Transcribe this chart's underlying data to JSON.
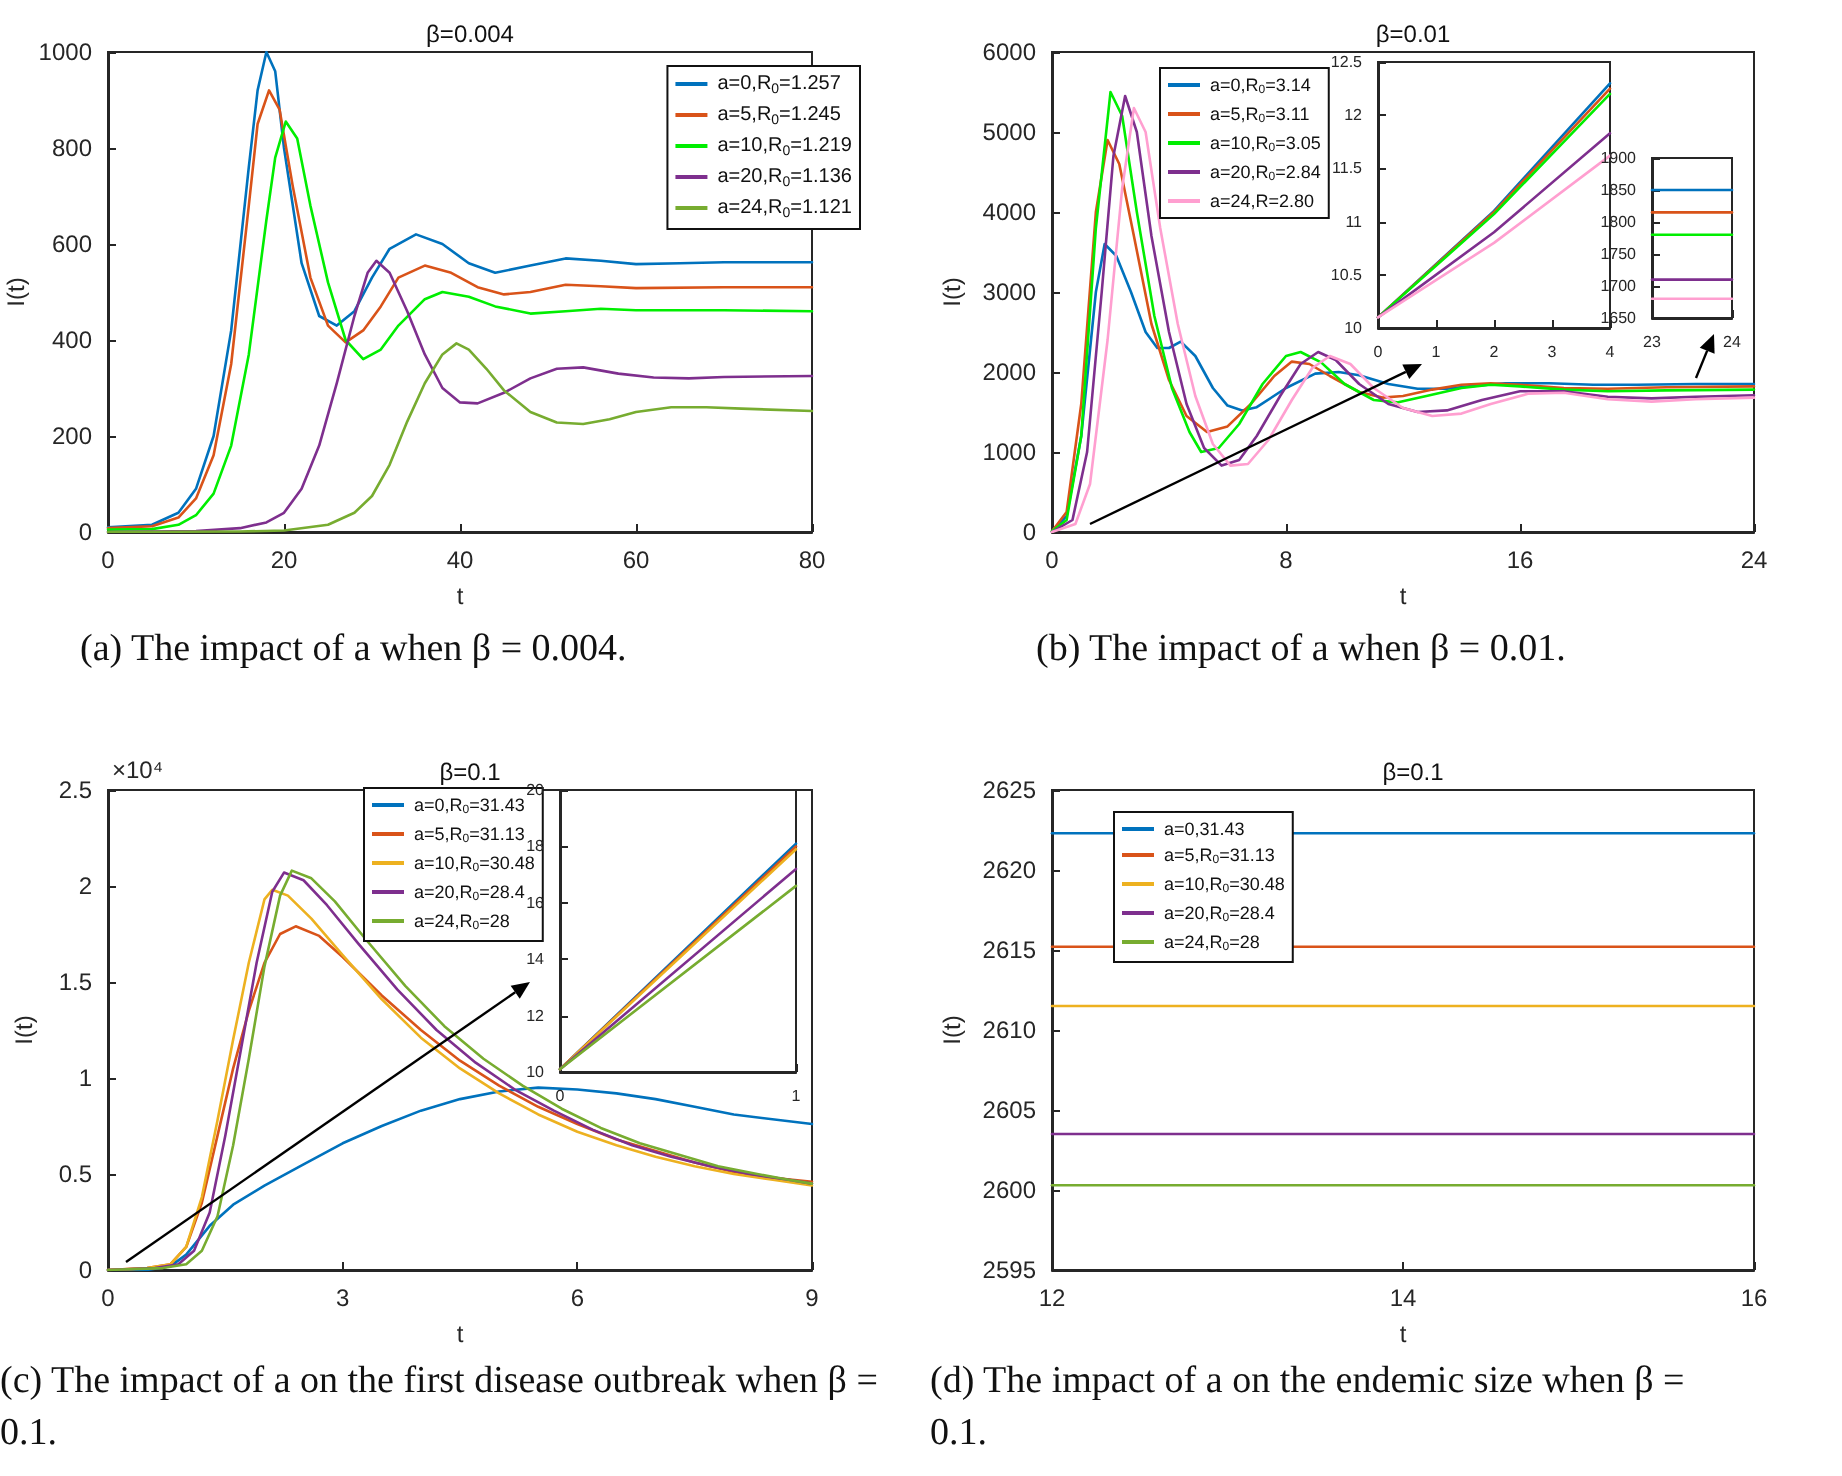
{
  "chart_data": [
    {
      "type": "line",
      "title": "β=0.004",
      "xlabel": "t",
      "ylabel": "I(t)",
      "xlim": [
        0,
        80
      ],
      "xticks": [
        0,
        20,
        40,
        60,
        80
      ],
      "ylim": [
        0,
        1000
      ],
      "yticks": [
        0,
        200,
        400,
        600,
        800,
        1000
      ],
      "legend": "top right",
      "annotations": [
        "(a) The impact of a when β = 0.004."
      ],
      "series": [
        {
          "name": "a=0,R$_{0}$=1.257",
          "color": "#0072bd",
          "x": [
            0,
            5,
            8,
            10,
            12,
            14,
            16,
            17,
            18,
            19,
            20,
            22,
            24,
            26,
            28,
            30,
            32,
            35,
            38,
            41,
            44,
            48,
            52,
            56,
            60,
            65,
            70,
            80
          ],
          "values": [
            10,
            15,
            40,
            90,
            200,
            420,
            760,
            920,
            1000,
            960,
            800,
            560,
            450,
            430,
            460,
            530,
            590,
            620,
            600,
            560,
            540,
            555,
            570,
            565,
            558,
            560,
            562,
            562
          ]
        },
        {
          "name": "a=5,R$_{0}$=1.245",
          "color": "#d95319",
          "x": [
            0,
            5,
            8,
            10,
            12,
            14,
            16,
            17,
            18.3,
            19.5,
            21,
            23,
            25,
            27,
            29,
            31,
            33,
            36,
            39,
            42,
            45,
            48,
            52,
            56,
            60,
            70,
            80
          ],
          "values": [
            8,
            12,
            30,
            70,
            160,
            350,
            680,
            850,
            920,
            880,
            720,
            530,
            430,
            395,
            420,
            470,
            530,
            555,
            540,
            510,
            495,
            500,
            515,
            512,
            508,
            510,
            510
          ]
        },
        {
          "name": "a=10,R$_{0}$=1.219",
          "color": "#00ee00",
          "x": [
            0,
            5,
            8,
            10,
            12,
            14,
            16,
            18,
            19,
            20.2,
            21.5,
            23,
            25,
            27,
            29,
            31,
            33,
            36,
            38,
            41,
            44,
            48,
            52,
            56,
            60,
            70,
            80
          ],
          "values": [
            5,
            6,
            15,
            35,
            80,
            180,
            370,
            650,
            780,
            855,
            820,
            680,
            520,
            400,
            360,
            380,
            430,
            485,
            500,
            490,
            470,
            455,
            460,
            465,
            462,
            462,
            460
          ]
        },
        {
          "name": "a=20,R$_{0}$=1.136",
          "color": "#7e2f8e",
          "x": [
            0,
            10,
            15,
            18,
            20,
            22,
            24,
            26,
            28,
            29.5,
            30.5,
            32,
            34,
            36,
            38,
            40,
            42,
            45,
            48,
            51,
            54,
            58,
            62,
            66,
            70,
            80
          ],
          "values": [
            0,
            2,
            8,
            20,
            40,
            90,
            180,
            310,
            450,
            540,
            565,
            540,
            460,
            370,
            300,
            270,
            268,
            290,
            320,
            340,
            343,
            330,
            322,
            320,
            323,
            325
          ]
        },
        {
          "name": "a=24,R$_{0}$=1.121",
          "color": "#77ac30",
          "x": [
            0,
            15,
            20,
            25,
            28,
            30,
            32,
            34,
            36,
            38,
            39.6,
            41,
            43,
            45,
            48,
            51,
            54,
            57,
            60,
            64,
            68,
            72,
            80
          ],
          "values": [
            0,
            1,
            3,
            15,
            40,
            75,
            140,
            230,
            310,
            370,
            393,
            380,
            340,
            295,
            250,
            228,
            225,
            235,
            250,
            260,
            260,
            257,
            252
          ]
        }
      ]
    },
    {
      "type": "line",
      "title": "β=0.01",
      "xlabel": "t",
      "ylabel": "I(t)",
      "xlim": [
        0,
        24
      ],
      "xticks": [
        0,
        8,
        16,
        24
      ],
      "ylim": [
        0,
        6000
      ],
      "yticks": [
        0,
        1000,
        2000,
        3000,
        4000,
        5000,
        6000
      ],
      "legend": "top left",
      "annotations": [
        "(b) The impact of a when β = 0.01."
      ],
      "series": [
        {
          "name": "a=0,R$_{0}$=3.14",
          "color": "#0072bd",
          "x": [
            0,
            0.5,
            1,
            1.5,
            1.8,
            2.2,
            2.7,
            3.2,
            3.6,
            4,
            4.4,
            4.9,
            5.5,
            6,
            6.5,
            7,
            8,
            9,
            9.8,
            10.5,
            11.5,
            12.5,
            13.5,
            14.5,
            15.5,
            17,
            18.5,
            20,
            22,
            24
          ],
          "values": [
            10,
            200,
            1200,
            3000,
            3600,
            3450,
            3000,
            2500,
            2300,
            2300,
            2380,
            2200,
            1800,
            1580,
            1520,
            1560,
            1800,
            1980,
            2000,
            1960,
            1850,
            1790,
            1790,
            1830,
            1860,
            1860,
            1840,
            1840,
            1850,
            1850
          ]
        },
        {
          "name": "a=5,R$_{0}$=3.11",
          "color": "#d95319",
          "x": [
            0,
            0.5,
            1,
            1.5,
            1.9,
            2.3,
            2.8,
            3.4,
            4,
            4.6,
            5.3,
            6,
            6.8,
            7.6,
            8.2,
            8.8,
            9.5,
            10.5,
            11.3,
            12,
            13,
            14,
            15,
            16,
            17.5,
            19,
            21,
            24
          ],
          "values": [
            10,
            250,
            1600,
            4000,
            4900,
            4600,
            3700,
            2600,
            1900,
            1450,
            1250,
            1320,
            1600,
            1950,
            2130,
            2100,
            1950,
            1750,
            1680,
            1700,
            1780,
            1840,
            1860,
            1840,
            1800,
            1790,
            1810,
            1820
          ]
        },
        {
          "name": "a=10,R$_{0}$=3.05",
          "color": "#00ee00",
          "x": [
            0,
            0.5,
            1,
            1.5,
            2,
            2.4,
            2.9,
            3.5,
            4.1,
            4.7,
            5.1,
            5.7,
            6.4,
            7.2,
            8,
            8.5,
            9.2,
            10,
            11,
            11.8,
            12.8,
            14,
            15,
            16,
            17.5,
            19,
            21,
            24
          ],
          "values": [
            10,
            150,
            1200,
            3800,
            5500,
            5200,
            4000,
            2700,
            1800,
            1250,
            1000,
            1050,
            1350,
            1850,
            2200,
            2250,
            2120,
            1850,
            1650,
            1620,
            1700,
            1800,
            1840,
            1820,
            1780,
            1760,
            1770,
            1780
          ]
        },
        {
          "name": "a=20,R$_{0}$=2.84",
          "color": "#7e2f8e",
          "x": [
            0,
            0.7,
            1.2,
            1.7,
            2.1,
            2.5,
            2.9,
            3.4,
            4,
            4.6,
            5.2,
            5.8,
            6.4,
            7,
            7.8,
            8.5,
            9.1,
            9.7,
            10.5,
            11.5,
            12.5,
            13.5,
            14.7,
            16,
            17.5,
            19,
            20.5,
            22,
            24
          ],
          "values": [
            0,
            150,
            1000,
            3000,
            4700,
            5450,
            5000,
            3700,
            2500,
            1600,
            1050,
            830,
            900,
            1200,
            1700,
            2100,
            2250,
            2150,
            1850,
            1600,
            1500,
            1520,
            1650,
            1760,
            1760,
            1690,
            1670,
            1690,
            1710
          ]
        },
        {
          "name": "a=24,R=2.80",
          "color": "#ff9fd0",
          "x": [
            0,
            0.8,
            1.3,
            1.9,
            2.4,
            2.8,
            3.2,
            3.7,
            4.3,
            4.9,
            5.5,
            6.1,
            6.7,
            7.4,
            8.2,
            8.9,
            9.5,
            10.2,
            11,
            12,
            13,
            14,
            15,
            16.3,
            17.5,
            19,
            20.5,
            22,
            24
          ],
          "values": [
            0,
            100,
            600,
            2400,
            4300,
            5300,
            5000,
            3800,
            2600,
            1700,
            1100,
            830,
            850,
            1150,
            1650,
            2050,
            2200,
            2100,
            1800,
            1550,
            1450,
            1480,
            1600,
            1730,
            1740,
            1660,
            1630,
            1660,
            1680
          ]
        }
      ]
    },
    {
      "type": "line",
      "xlim": [
        0,
        4
      ],
      "xticks": [
        0,
        1,
        2,
        3,
        4
      ],
      "ylim": [
        10,
        12.5
      ],
      "yticks": [
        10,
        10.5,
        11,
        11.5,
        12,
        12.5
      ],
      "series": [
        {
          "color": "#0072bd",
          "x": [
            0,
            2,
            4
          ],
          "values": [
            10.1,
            11.1,
            12.3
          ]
        },
        {
          "color": "#d95319",
          "x": [
            0,
            2,
            4
          ],
          "values": [
            10.1,
            11.09,
            12.25
          ]
        },
        {
          "color": "#00ee00",
          "x": [
            0,
            2,
            4
          ],
          "values": [
            10.1,
            11.07,
            12.2
          ]
        },
        {
          "color": "#7e2f8e",
          "x": [
            0,
            2,
            4
          ],
          "values": [
            10.1,
            10.9,
            11.83
          ]
        },
        {
          "color": "#ff9fd0",
          "x": [
            0,
            2,
            4
          ],
          "values": [
            10.1,
            10.8,
            11.62
          ]
        }
      ]
    },
    {
      "type": "line",
      "xlim": [
        23,
        24
      ],
      "xticks": [
        23,
        24
      ],
      "ylim": [
        1650,
        1900
      ],
      "yticks": [
        1650,
        1700,
        1750,
        1800,
        1850,
        1900
      ],
      "series": [
        {
          "color": "#0072bd",
          "x": [
            23,
            24
          ],
          "values": [
            1850,
            1850
          ]
        },
        {
          "color": "#d95319",
          "x": [
            23,
            24
          ],
          "values": [
            1815,
            1815
          ]
        },
        {
          "color": "#00ee00",
          "x": [
            23,
            24
          ],
          "values": [
            1780,
            1780
          ]
        },
        {
          "color": "#7e2f8e",
          "x": [
            23,
            24
          ],
          "values": [
            1710,
            1710
          ]
        },
        {
          "color": "#ff9fd0",
          "x": [
            23,
            24
          ],
          "values": [
            1680,
            1680
          ]
        }
      ]
    },
    {
      "type": "line",
      "title": "β=0.1",
      "xlabel": "t",
      "ylabel": "I(t)",
      "xlim": [
        0,
        9
      ],
      "xticks": [
        0,
        3,
        6,
        9
      ],
      "ylim": [
        0,
        2.5
      ],
      "yticks": [
        0,
        0.5,
        1,
        1.5,
        2,
        2.5
      ],
      "legend": "top",
      "annotations": [
        "×10⁴",
        "(c) The impact of a on the first disease outbreak when β = 0.1."
      ],
      "series": [
        {
          "name": "a=0,R$_{0}$=31.43",
          "color": "#0072bd",
          "x": [
            0,
            0.5,
            0.8,
            1,
            1.3,
            1.6,
            2,
            2.5,
            3,
            3.5,
            4,
            4.5,
            5,
            5.5,
            6,
            6.5,
            7,
            7.5,
            8,
            9
          ],
          "values": [
            0,
            0,
            0.02,
            0.08,
            0.23,
            0.34,
            0.44,
            0.55,
            0.66,
            0.75,
            0.83,
            0.89,
            0.93,
            0.95,
            0.94,
            0.92,
            0.89,
            0.85,
            0.81,
            0.76
          ]
        },
        {
          "name": "a=5,R$_{0}$=31.13",
          "color": "#d95319",
          "x": [
            0,
            0.5,
            0.8,
            1,
            1.2,
            1.4,
            1.6,
            1.8,
            2,
            2.2,
            2.4,
            2.7,
            3,
            3.5,
            4,
            4.5,
            5,
            5.5,
            6,
            6.5,
            7,
            7.5,
            8,
            8.5,
            9
          ],
          "values": [
            0,
            0.01,
            0.03,
            0.12,
            0.35,
            0.7,
            1.05,
            1.35,
            1.6,
            1.75,
            1.79,
            1.74,
            1.63,
            1.43,
            1.25,
            1.09,
            0.96,
            0.85,
            0.76,
            0.68,
            0.62,
            0.56,
            0.51,
            0.48,
            0.46
          ]
        },
        {
          "name": "a=10,R$_{0}$=30.48",
          "color": "#edb120",
          "x": [
            0,
            0.5,
            0.8,
            1,
            1.2,
            1.4,
            1.6,
            1.8,
            2,
            2.1,
            2.3,
            2.6,
            3,
            3.5,
            4,
            4.5,
            5,
            5.5,
            6,
            6.5,
            7,
            7.5,
            8,
            8.5,
            9
          ],
          "values": [
            0,
            0.01,
            0.03,
            0.12,
            0.38,
            0.78,
            1.2,
            1.6,
            1.93,
            1.98,
            1.95,
            1.83,
            1.64,
            1.41,
            1.21,
            1.05,
            0.92,
            0.81,
            0.72,
            0.65,
            0.59,
            0.54,
            0.5,
            0.47,
            0.44
          ]
        },
        {
          "name": "a=20,R$_{0}$=28.4",
          "color": "#7e2f8e",
          "x": [
            0,
            0.6,
            0.9,
            1.1,
            1.3,
            1.5,
            1.7,
            1.9,
            2.1,
            2.25,
            2.5,
            2.8,
            3.2,
            3.7,
            4.2,
            4.7,
            5.2,
            5.7,
            6.2,
            6.7,
            7.2,
            7.7,
            8.2,
            8.7,
            9
          ],
          "values": [
            0,
            0.01,
            0.03,
            0.1,
            0.3,
            0.7,
            1.15,
            1.6,
            1.97,
            2.07,
            2.03,
            1.9,
            1.7,
            1.46,
            1.25,
            1.08,
            0.94,
            0.83,
            0.73,
            0.65,
            0.59,
            0.54,
            0.5,
            0.47,
            0.45
          ]
        },
        {
          "name": "a=24,R$_{0}$=28",
          "color": "#77ac30",
          "x": [
            0,
            0.7,
            1,
            1.2,
            1.4,
            1.6,
            1.8,
            2,
            2.2,
            2.35,
            2.6,
            2.9,
            3.3,
            3.8,
            4.3,
            4.8,
            5.3,
            5.8,
            6.3,
            6.8,
            7.3,
            7.8,
            8.3,
            8.7,
            9
          ],
          "values": [
            0,
            0.01,
            0.03,
            0.1,
            0.28,
            0.65,
            1.1,
            1.58,
            1.95,
            2.08,
            2.04,
            1.92,
            1.72,
            1.48,
            1.27,
            1.1,
            0.96,
            0.84,
            0.74,
            0.66,
            0.6,
            0.54,
            0.5,
            0.47,
            0.45
          ]
        }
      ]
    },
    {
      "type": "line",
      "xlim": [
        0,
        1
      ],
      "xticks": [
        0,
        1
      ],
      "ylim": [
        10,
        20
      ],
      "yticks": [
        10,
        12,
        14,
        16,
        18,
        20
      ],
      "series": [
        {
          "color": "#0072bd",
          "x": [
            0,
            1
          ],
          "values": [
            10.1,
            18.1
          ]
        },
        {
          "color": "#d95319",
          "x": [
            0,
            1
          ],
          "values": [
            10.1,
            18
          ]
        },
        {
          "color": "#edb120",
          "x": [
            0,
            1
          ],
          "values": [
            10.1,
            17.9
          ]
        },
        {
          "color": "#7e2f8e",
          "x": [
            0,
            1
          ],
          "values": [
            10.1,
            17.2
          ]
        },
        {
          "color": "#77ac30",
          "x": [
            0,
            1
          ],
          "values": [
            10.1,
            16.6
          ]
        }
      ]
    },
    {
      "type": "line",
      "title": "β=0.1",
      "xlabel": "t",
      "ylabel": "I(t)",
      "xlim": [
        12,
        16
      ],
      "xticks": [
        12,
        14,
        16
      ],
      "ylim": [
        2595,
        2625
      ],
      "yticks": [
        2595,
        2600,
        2605,
        2610,
        2615,
        2620,
        2625
      ],
      "legend": "top left",
      "annotations": [
        "(d) The impact of a on the endemic size when β = 0.1."
      ],
      "series": [
        {
          "name": "a=0,31.43",
          "color": "#0072bd",
          "x": [
            12,
            16
          ],
          "values": [
            2622.3,
            2622.3
          ]
        },
        {
          "name": "a=5,R$_{0}$=31.13",
          "color": "#d95319",
          "x": [
            12,
            16
          ],
          "values": [
            2615.2,
            2615.2
          ]
        },
        {
          "name": "a=10,R$_{0}$=30.48",
          "color": "#edb120",
          "x": [
            12,
            16
          ],
          "values": [
            2611.5,
            2611.5
          ]
        },
        {
          "name": "a=20,R$_{0}$=28.4",
          "color": "#7e2f8e",
          "x": [
            12,
            16
          ],
          "values": [
            2603.5,
            2603.5
          ]
        },
        {
          "name": "a=24,R$_{0}$=28",
          "color": "#77ac30",
          "x": [
            12,
            16
          ],
          "values": [
            2600.3,
            2600.3
          ]
        }
      ]
    }
  ]
}
